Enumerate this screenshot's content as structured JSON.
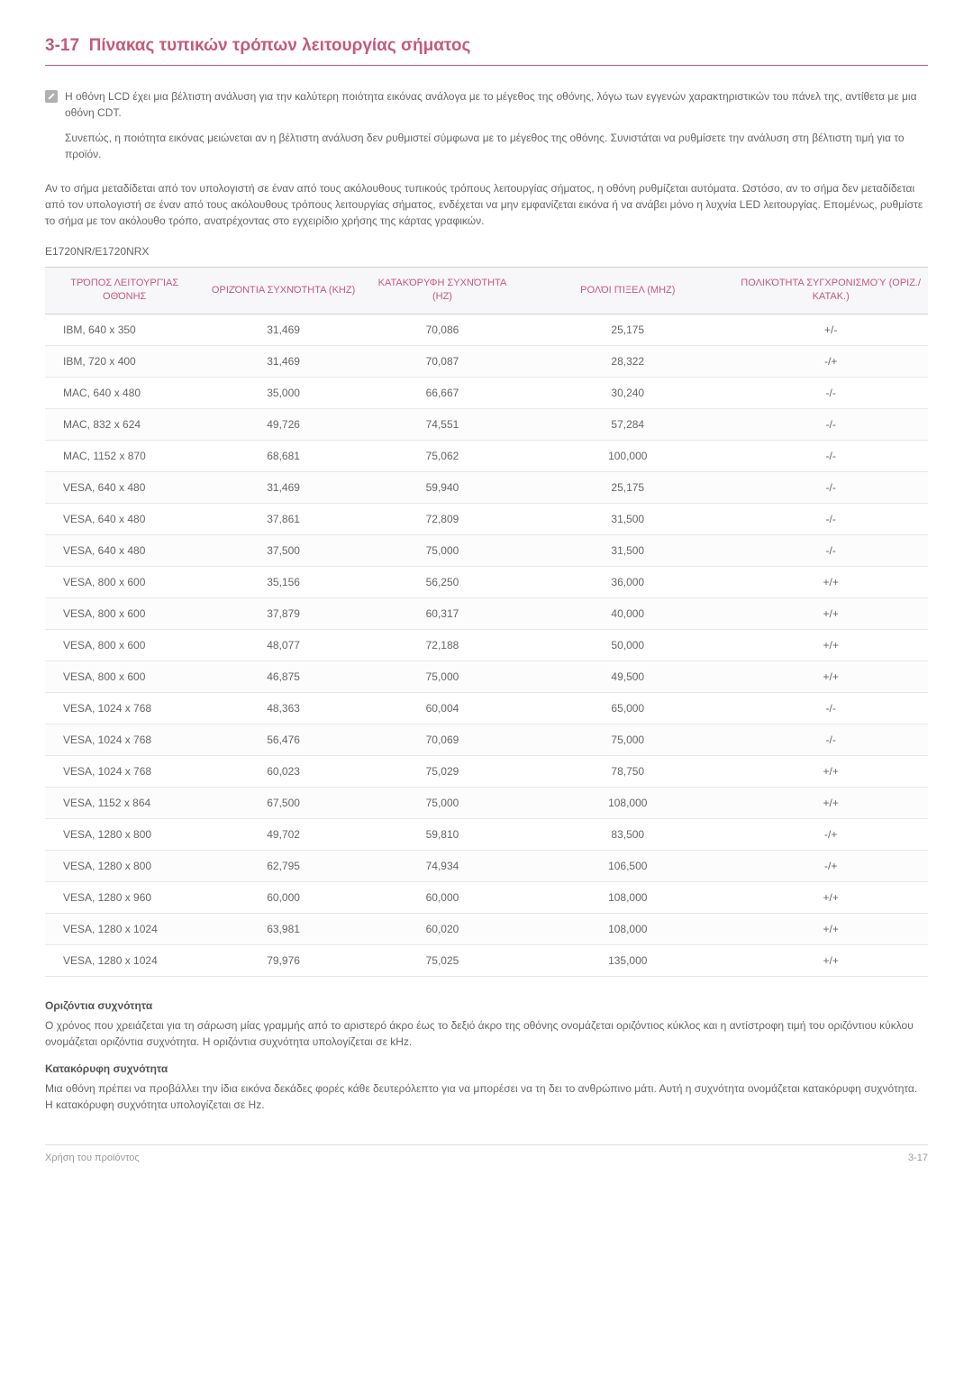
{
  "section": {
    "number": "3-17",
    "title": "Πίνακας τυπικών τρόπων λειτουργίας σήματος"
  },
  "note": {
    "p1": "Η οθόνη LCD έχει μια βέλτιστη ανάλυση για την καλύτερη ποιότητα εικόνας ανάλογα με το μέγεθος της οθόνης, λόγω των εγγενών χαρακτηριστικών του πάνελ της, αντίθετα με μια οθόνη CDT.",
    "p2": "Συνεπώς, η ποιότητα εικόνας μειώνεται αν η βέλτιστη ανάλυση δεν ρυθμιστεί σύμφωνα με το μέγεθος της οθόνης. Συνιστάται να ρυθμίσετε την ανάλυση στη βέλτιστη τιμή για το προϊόν."
  },
  "body": "Αν το σήμα μεταδίδεται από τον υπολογιστή σε έναν από τους ακόλουθους τυπικούς τρόπους λειτουργίας σήματος, η οθόνη ρυθμίζεται αυτόματα. Ωστόσο, αν το σήμα δεν μεταδίδεται από τον υπολογιστή σε έναν από τους ακόλουθους τρόπους λειτουργίας σήματος, ενδέχεται να μην εμφανίζεται εικόνα ή να ανάβει μόνο η λυχνία LED λειτουργίας. Επομένως, ρυθμίστε το σήμα με τον ακόλουθο τρόπο, ανατρέχοντας στο εγχειρίδιο χρήσης της κάρτας γραφικών.",
  "model": "E1720NR/E1720NRX",
  "table": {
    "headers": {
      "c1": "ΤΡΌΠΟΣ ΛΕΙΤΟΥΡΓΊΑΣ ΟΘΌΝΗΣ",
      "c2": "ΟΡΙΖΌΝΤΙΑ ΣΥΧΝΌΤΗΤΑ (KHZ)",
      "c3": "ΚΑΤΑΚΌΡΥΦΗ ΣΥΧΝΌΤΗΤΑ (HZ)",
      "c4": "ΡΟΛΌΙ ΠΊΞΕΛ (MHZ)",
      "c5": "ΠΟΛΙΚΌΤΗΤΑ ΣΥΓΧΡΟΝΙΣΜΟΎ (ΟΡΙΖ./ΚΑΤΑΚ.)"
    },
    "rows": [
      [
        "IBM, 640 x 350",
        "31,469",
        "70,086",
        "25,175",
        "+/-"
      ],
      [
        "IBM, 720 x 400",
        "31,469",
        "70,087",
        "28,322",
        "-/+"
      ],
      [
        "MAC, 640 x 480",
        "35,000",
        "66,667",
        "30,240",
        "-/-"
      ],
      [
        "MAC, 832 x 624",
        "49,726",
        "74,551",
        "57,284",
        "-/-"
      ],
      [
        "MAC, 1152 x 870",
        "68,681",
        "75,062",
        "100,000",
        "-/-"
      ],
      [
        "VESA, 640 x 480",
        "31,469",
        "59,940",
        "25,175",
        "-/-"
      ],
      [
        "VESA, 640 x 480",
        "37,861",
        "72,809",
        "31,500",
        "-/-"
      ],
      [
        "VESA, 640 x 480",
        "37,500",
        "75,000",
        "31,500",
        "-/-"
      ],
      [
        "VESA, 800 x 600",
        "35,156",
        "56,250",
        "36,000",
        "+/+"
      ],
      [
        "VESA, 800 x 600",
        "37,879",
        "60,317",
        "40,000",
        "+/+"
      ],
      [
        "VESA, 800 x 600",
        "48,077",
        "72,188",
        "50,000",
        "+/+"
      ],
      [
        "VESA, 800 x 600",
        "46,875",
        "75,000",
        "49,500",
        "+/+"
      ],
      [
        "VESA, 1024 x 768",
        "48,363",
        "60,004",
        "65,000",
        "-/-"
      ],
      [
        "VESA, 1024 x 768",
        "56,476",
        "70,069",
        "75,000",
        "-/-"
      ],
      [
        "VESA, 1024 x 768",
        "60,023",
        "75,029",
        "78,750",
        "+/+"
      ],
      [
        "VESA, 1152 x 864",
        "67,500",
        "75,000",
        "108,000",
        "+/+"
      ],
      [
        "VESA, 1280 x 800",
        "49,702",
        "59,810",
        "83,500",
        "-/+"
      ],
      [
        "VESA, 1280 x 800",
        "62,795",
        "74,934",
        "106,500",
        "-/+"
      ],
      [
        "VESA, 1280 x 960",
        "60,000",
        "60,000",
        "108,000",
        "+/+"
      ],
      [
        "VESA, 1280 x 1024",
        "63,981",
        "60,020",
        "108,000",
        "+/+"
      ],
      [
        "VESA, 1280 x 1024",
        "79,976",
        "75,025",
        "135,000",
        "+/+"
      ]
    ]
  },
  "terms": {
    "t1_title": "Οριζόντια συχνότητα",
    "t1_text": "Ο χρόνος που χρειάζεται για τη σάρωση μίας γραμμής από το αριστερό άκρο έως το δεξιό άκρο της οθόνης ονομάζεται οριζόντιος κύκλος και η αντίστροφη τιμή του οριζόντιου κύκλου ονομάζεται οριζόντια συχνότητα. Η οριζόντια συχνότητα υπολογίζεται σε kHz.",
    "t2_title": "Κατακόρυφη συχνότητα",
    "t2_text": "Μια οθόνη πρέπει να προβάλλει την ίδια εικόνα δεκάδες φορές κάθε δευτερόλεπτο για να μπορέσει να τη δει το ανθρώπινο μάτι. Αυτή η συχνότητα ονομάζεται κατακόρυφη συχνότητα. Η κατακόρυφη συχνότητα υπολογίζεται σε Hz."
  },
  "footer": {
    "left": "Χρήση του προϊόντος",
    "right": "3-17"
  }
}
